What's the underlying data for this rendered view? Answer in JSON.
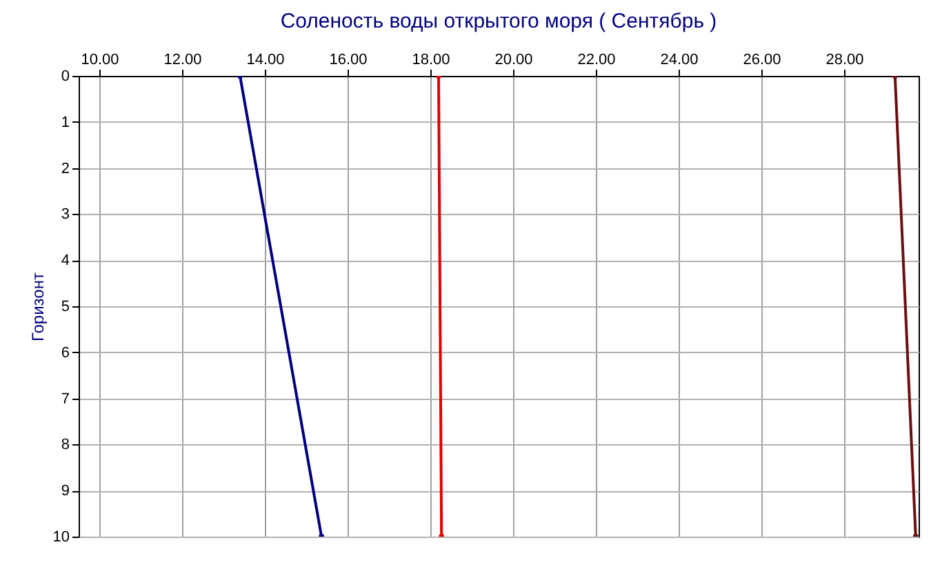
{
  "chart_data": {
    "type": "line",
    "title": "Соленость воды открытого моря    ( Сентябрь )",
    "ylabel": "Горизонт",
    "xlim": [
      9.5,
      29.8
    ],
    "xticks": [
      {
        "value": 10,
        "label": "10.00"
      },
      {
        "value": 12,
        "label": "12.00"
      },
      {
        "value": 14,
        "label": "14.00"
      },
      {
        "value": 16,
        "label": "16.00"
      },
      {
        "value": 18,
        "label": "18.00"
      },
      {
        "value": 20,
        "label": "20.00"
      },
      {
        "value": 22,
        "label": "22.00"
      },
      {
        "value": 24,
        "label": "24.00"
      },
      {
        "value": 26,
        "label": "26.00"
      },
      {
        "value": 28,
        "label": "28.00"
      }
    ],
    "ylim": [
      10,
      0
    ],
    "yticks": [
      0,
      1,
      2,
      3,
      4,
      5,
      6,
      7,
      8,
      9,
      10
    ],
    "grid": true,
    "marker": "circle",
    "line_style": "solid",
    "series": [
      {
        "color": "#000080",
        "x": [
          13.4,
          15.37
        ],
        "values": [
          0,
          10
        ]
      },
      {
        "color": "#e00000",
        "x": [
          18.2,
          18.27
        ],
        "values": [
          0,
          10
        ]
      },
      {
        "color": "#6b1010",
        "x": [
          29.23,
          29.73
        ],
        "values": [
          0,
          10
        ]
      }
    ]
  }
}
